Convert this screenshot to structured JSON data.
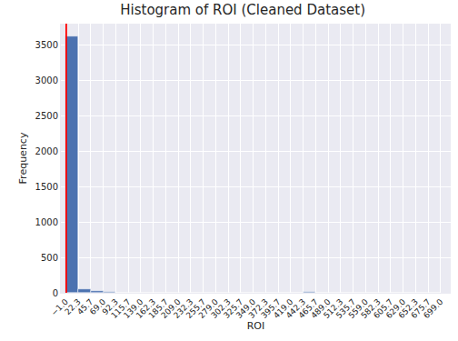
{
  "chart_data": {
    "type": "histogram",
    "title": "Histogram of ROI (Cleaned Dataset)",
    "x_label": "ROI",
    "y_label": "Frequency",
    "bins": [
      -1,
      22.3,
      45.7,
      69,
      92.3,
      115.7,
      139,
      162.3,
      185.7,
      209,
      232.3,
      255.7,
      279,
      302.3,
      325.7,
      349,
      372.3,
      395.7,
      419,
      442.3,
      465.7,
      489,
      512.3,
      535.7,
      559,
      582.3,
      605.7,
      629,
      652.3,
      675.7,
      699
    ],
    "counts": [
      3620,
      50,
      20,
      10,
      6,
      5,
      3,
      1,
      1,
      1,
      1,
      0,
      0,
      0,
      0,
      0,
      0,
      0,
      0,
      10,
      0,
      0,
      0,
      0,
      0,
      0,
      0,
      0,
      0,
      0
    ],
    "color": "#4c72b0",
    "vline": 0,
    "xlim": [
      -10,
      718
    ],
    "ylim": [
      0,
      3800
    ],
    "xticks": [
      {
        "value": -1,
        "label": "−1.0"
      },
      22.3,
      45.7,
      {
        "value": 69,
        "label": "69.0"
      },
      92.3,
      115.7,
      {
        "value": 139,
        "label": "139.0"
      },
      162.3,
      185.7,
      {
        "value": 209,
        "label": "209.0"
      },
      232.3,
      255.7,
      {
        "value": 279,
        "label": "279.0"
      },
      302.3,
      325.7,
      {
        "value": 349,
        "label": "349.0"
      },
      372.3,
      395.7,
      {
        "value": 419,
        "label": "419.0"
      },
      442.3,
      465.7,
      {
        "value": 489,
        "label": "489.0"
      },
      512.3,
      535.7,
      {
        "value": 559,
        "label": "559.0"
      },
      582.3,
      605.7,
      {
        "value": 629,
        "label": "629.0"
      },
      652.3,
      675.7,
      {
        "value": 699,
        "label": "699.0"
      }
    ],
    "yticks": [
      0,
      500,
      1000,
      1500,
      2000,
      2500,
      3000,
      3500
    ],
    "grid": true
  }
}
